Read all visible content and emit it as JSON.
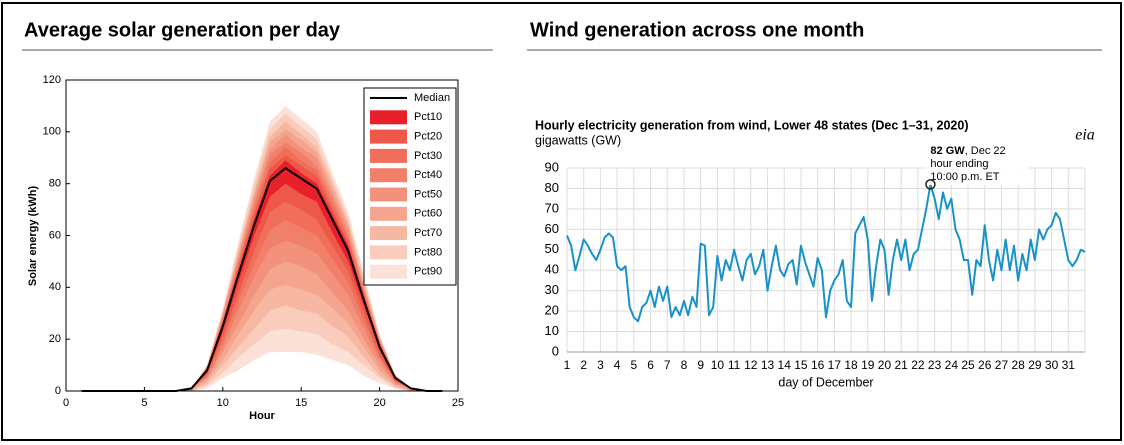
{
  "chart_data": [
    {
      "type": "area",
      "title": "Average solar generation per day",
      "x_label": "Hour",
      "y_label": "Solar energy (kWh)",
      "xlim": [
        0,
        25
      ],
      "xticks": [
        0,
        5,
        10,
        15,
        20,
        25
      ],
      "ylim": [
        0,
        120
      ],
      "yticks": [
        0,
        20,
        40,
        60,
        80,
        100,
        120
      ],
      "legend": "upper right",
      "x": [
        1,
        2,
        3,
        4,
        5,
        6,
        7,
        8,
        9,
        10,
        11,
        12,
        13,
        14,
        15,
        16,
        17,
        18,
        19,
        20,
        21,
        22,
        23,
        24
      ],
      "series": [
        {
          "name": "Median",
          "color": "#000000",
          "values": [
            0,
            0,
            0,
            0,
            0,
            0,
            0,
            1,
            8,
            25,
            45,
            64,
            81,
            86,
            82,
            78,
            66,
            54,
            35,
            17,
            5,
            1,
            0,
            0
          ]
        },
        {
          "name": "Pct10",
          "color": "#e8202a",
          "upper": [
            0,
            0,
            0,
            0,
            0,
            0,
            0,
            1,
            8,
            26,
            46,
            66,
            83,
            89,
            84,
            80,
            68,
            56,
            36,
            18,
            5,
            1,
            0,
            0
          ],
          "lower": [
            0,
            0,
            0,
            0,
            0,
            0,
            0,
            1,
            7,
            23,
            42,
            60,
            75,
            80,
            76,
            73,
            61,
            50,
            33,
            16,
            5,
            1,
            0,
            0
          ]
        },
        {
          "name": "Pct20",
          "color": "#ee5848",
          "upper": [
            0,
            0,
            0,
            0,
            0,
            0,
            0,
            1,
            8,
            27,
            48,
            68,
            86,
            91,
            87,
            83,
            70,
            57,
            37,
            18,
            5,
            1,
            0,
            0
          ],
          "lower": [
            0,
            0,
            0,
            0,
            0,
            0,
            0,
            1,
            7,
            21,
            38,
            54,
            69,
            73,
            70,
            66,
            56,
            46,
            30,
            14,
            4,
            1,
            0,
            0
          ]
        },
        {
          "name": "Pct30",
          "color": "#f06e5a",
          "upper": [
            0,
            0,
            0,
            0,
            0,
            0,
            0,
            1,
            9,
            27,
            49,
            70,
            88,
            94,
            89,
            85,
            72,
            59,
            38,
            19,
            5,
            1,
            0,
            0
          ],
          "lower": [
            0,
            0,
            0,
            0,
            0,
            0,
            0,
            1,
            6,
            19,
            35,
            49,
            62,
            66,
            63,
            60,
            51,
            42,
            27,
            13,
            4,
            1,
            0,
            0
          ]
        },
        {
          "name": "Pct40",
          "color": "#f1806a",
          "upper": [
            0,
            0,
            0,
            0,
            0,
            0,
            0,
            1,
            9,
            28,
            50,
            72,
            91,
            96,
            92,
            87,
            74,
            60,
            39,
            19,
            6,
            1,
            0,
            0
          ],
          "lower": [
            0,
            0,
            0,
            0,
            0,
            0,
            0,
            1,
            5,
            17,
            31,
            44,
            55,
            58,
            56,
            53,
            45,
            37,
            24,
            12,
            3,
            1,
            0,
            0
          ]
        },
        {
          "name": "Pct50",
          "color": "#f3927c",
          "upper": [
            0,
            0,
            0,
            0,
            0,
            0,
            0,
            1,
            9,
            29,
            52,
            74,
            93,
            99,
            94,
            90,
            76,
            62,
            40,
            20,
            6,
            1,
            0,
            0
          ],
          "lower": [
            0,
            0,
            0,
            0,
            0,
            0,
            0,
            1,
            5,
            15,
            26,
            37,
            47,
            50,
            48,
            45,
            38,
            31,
            20,
            10,
            3,
            1,
            0,
            0
          ]
        },
        {
          "name": "Pct60",
          "color": "#f5a48e",
          "upper": [
            0,
            0,
            0,
            0,
            0,
            0,
            0,
            1,
            9,
            30,
            53,
            76,
            96,
            101,
            97,
            92,
            78,
            64,
            41,
            20,
            6,
            1,
            0,
            0
          ],
          "lower": [
            0,
            0,
            0,
            0,
            0,
            0,
            0,
            0,
            4,
            12,
            22,
            31,
            39,
            41,
            39,
            37,
            32,
            26,
            17,
            8,
            2,
            0,
            0,
            0
          ]
        },
        {
          "name": "Pct70",
          "color": "#f7b8a3",
          "upper": [
            0,
            0,
            0,
            0,
            0,
            0,
            0,
            1,
            10,
            30,
            54,
            77,
            98,
            104,
            99,
            94,
            80,
            65,
            42,
            21,
            6,
            1,
            0,
            0
          ],
          "lower": [
            0,
            0,
            0,
            0,
            0,
            0,
            0,
            0,
            3,
            10,
            17,
            24,
            31,
            33,
            31,
            30,
            25,
            21,
            13,
            6,
            2,
            0,
            0,
            0
          ]
        },
        {
          "name": "Pct80",
          "color": "#f9ccbc",
          "upper": [
            0,
            0,
            0,
            0,
            0,
            0,
            0,
            1,
            10,
            31,
            56,
            80,
            101,
            107,
            102,
            97,
            82,
            67,
            44,
            21,
            6,
            1,
            0,
            0
          ],
          "lower": [
            0,
            0,
            0,
            0,
            0,
            0,
            0,
            0,
            2,
            7,
            13,
            18,
            23,
            24,
            23,
            22,
            18,
            15,
            10,
            5,
            1,
            0,
            0,
            0
          ]
        },
        {
          "name": "Pct90",
          "color": "#fbe1d7",
          "upper": [
            0,
            0,
            0,
            0,
            0,
            0,
            0,
            1,
            10,
            32,
            58,
            82,
            104,
            110,
            105,
            100,
            84,
            69,
            45,
            22,
            6,
            1,
            0,
            0
          ],
          "lower": [
            0,
            0,
            0,
            0,
            0,
            0,
            0,
            0,
            1,
            5,
            8,
            12,
            15,
            15,
            15,
            14,
            12,
            10,
            6,
            3,
            1,
            0,
            0,
            0
          ]
        }
      ]
    },
    {
      "type": "line",
      "panel_title": "Wind generation across one month",
      "title": "Hourly electricity generation from wind, Lower 48 states (Dec 1–31, 2020)",
      "subtitle": "gigawatts (GW)",
      "logo": "eia",
      "x_label": "day of December",
      "annotation": {
        "value_text": "82 GW",
        "date_text": ", Dec 22",
        "line2": "hour ending",
        "line3": "10:00 p.m. ET"
      },
      "xlim": [
        1,
        32
      ],
      "xticks": [
        1,
        2,
        3,
        4,
        5,
        6,
        7,
        8,
        9,
        10,
        11,
        12,
        13,
        14,
        15,
        16,
        17,
        18,
        19,
        20,
        21,
        22,
        23,
        24,
        25,
        26,
        27,
        28,
        29,
        30,
        31
      ],
      "ylim": [
        0,
        90
      ],
      "yticks": [
        0,
        10,
        20,
        30,
        40,
        50,
        60,
        70,
        80,
        90
      ],
      "grid": true,
      "x": [
        1,
        1.25,
        1.5,
        1.75,
        2,
        2.25,
        2.5,
        2.75,
        3,
        3.25,
        3.5,
        3.75,
        4,
        4.25,
        4.5,
        4.75,
        5,
        5.25,
        5.5,
        5.75,
        6,
        6.25,
        6.5,
        6.75,
        7,
        7.25,
        7.5,
        7.75,
        8,
        8.25,
        8.5,
        8.75,
        9,
        9.25,
        9.5,
        9.75,
        10,
        10.25,
        10.5,
        10.75,
        11,
        11.25,
        11.5,
        11.75,
        12,
        12.25,
        12.5,
        12.75,
        13,
        13.25,
        13.5,
        13.75,
        14,
        14.25,
        14.5,
        14.75,
        15,
        15.25,
        15.5,
        15.75,
        16,
        16.25,
        16.5,
        16.75,
        17,
        17.25,
        17.5,
        17.75,
        18,
        18.25,
        18.5,
        18.75,
        19,
        19.25,
        19.5,
        19.75,
        20,
        20.25,
        20.5,
        20.75,
        21,
        21.25,
        21.5,
        21.75,
        22,
        22.25,
        22.5,
        22.75,
        23,
        23.25,
        23.5,
        23.75,
        24,
        24.25,
        24.5,
        24.75,
        25,
        25.25,
        25.5,
        25.75,
        26,
        26.25,
        26.5,
        26.75,
        27,
        27.25,
        27.5,
        27.75,
        28,
        28.25,
        28.5,
        28.75,
        29,
        29.25,
        29.5,
        29.75,
        30,
        30.25,
        30.5,
        30.75,
        31,
        31.25,
        31.5,
        31.75,
        32
      ],
      "series": [
        {
          "name": "wind",
          "color": "#1a92c9",
          "values": [
            57,
            52,
            40,
            47,
            55,
            52,
            48,
            45,
            50,
            56,
            58,
            56,
            42,
            40,
            42,
            22,
            17,
            15,
            22,
            24,
            30,
            22,
            32,
            25,
            32,
            17,
            22,
            18,
            25,
            18,
            27,
            22,
            53,
            52,
            18,
            22,
            47,
            35,
            45,
            40,
            50,
            42,
            35,
            45,
            48,
            38,
            42,
            50,
            30,
            42,
            52,
            40,
            37,
            43,
            45,
            33,
            52,
            44,
            38,
            32,
            46,
            40,
            17,
            30,
            35,
            38,
            45,
            25,
            22,
            58,
            62,
            66,
            55,
            25,
            42,
            55,
            50,
            28,
            45,
            55,
            45,
            55,
            40,
            48,
            50,
            60,
            70,
            82,
            75,
            65,
            78,
            70,
            75,
            60,
            55,
            45,
            45,
            28,
            45,
            42,
            62,
            45,
            35,
            50,
            40,
            55,
            40,
            52,
            35,
            48,
            40,
            55,
            45,
            60,
            55,
            60,
            62,
            68,
            65,
            55,
            45,
            42,
            45,
            50,
            49
          ]
        }
      ],
      "highlight": 87
    }
  ]
}
